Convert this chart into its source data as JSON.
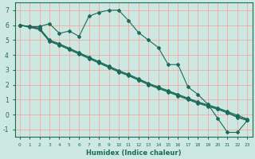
{
  "xlabel": "Humidex (Indice chaleur)",
  "bg_color": "#cce8e0",
  "grid_color": "#ff9999",
  "line_color": "#1a6b5a",
  "xlim": [
    -0.5,
    23.5
  ],
  "ylim": [
    -1.5,
    7.5
  ],
  "xticks": [
    0,
    1,
    2,
    3,
    4,
    5,
    6,
    7,
    8,
    9,
    10,
    11,
    12,
    13,
    14,
    15,
    16,
    17,
    18,
    19,
    20,
    21,
    22,
    23
  ],
  "yticks": [
    -1,
    0,
    1,
    2,
    3,
    4,
    5,
    6,
    7
  ],
  "line1_x": [
    0,
    1,
    2,
    3,
    4,
    5,
    6,
    7,
    8,
    9,
    10,
    11,
    12,
    13,
    14,
    15,
    16,
    17,
    18,
    19,
    20,
    21,
    22,
    23
  ],
  "line1_y": [
    6.0,
    5.9,
    5.9,
    6.1,
    5.45,
    5.6,
    5.25,
    6.6,
    6.85,
    7.0,
    7.0,
    6.3,
    5.5,
    5.0,
    4.5,
    3.35,
    3.35,
    1.85,
    1.35,
    0.7,
    -0.25,
    -1.2,
    -1.2,
    -0.4
  ],
  "line2_x": [
    0,
    1,
    2,
    3,
    4,
    5,
    6,
    7,
    8,
    9,
    10,
    11,
    12,
    13,
    14,
    15,
    16,
    17,
    18,
    19,
    20,
    21,
    22,
    23
  ],
  "line2_y": [
    6.0,
    5.9,
    5.8,
    5.0,
    4.75,
    4.45,
    4.15,
    3.85,
    3.55,
    3.25,
    2.95,
    2.7,
    2.4,
    2.1,
    1.85,
    1.6,
    1.35,
    1.1,
    0.85,
    0.65,
    0.45,
    0.2,
    -0.05,
    -0.3
  ],
  "line3_x": [
    0,
    1,
    2,
    3,
    4,
    5,
    6,
    7,
    8,
    9,
    10,
    11,
    12,
    13,
    14,
    15,
    16,
    17,
    18,
    19,
    20,
    21,
    22,
    23
  ],
  "line3_y": [
    6.0,
    5.9,
    5.75,
    4.95,
    4.7,
    4.4,
    4.1,
    3.8,
    3.5,
    3.2,
    2.9,
    2.65,
    2.35,
    2.05,
    1.8,
    1.55,
    1.3,
    1.05,
    0.8,
    0.6,
    0.4,
    0.15,
    -0.15,
    -0.35
  ],
  "line4_x": [
    0,
    1,
    2,
    3,
    4,
    5,
    6,
    7,
    8,
    9,
    10,
    11,
    12,
    13,
    14,
    15,
    16,
    17,
    18,
    19,
    20,
    21,
    22,
    23
  ],
  "line4_y": [
    6.0,
    5.85,
    5.7,
    4.9,
    4.65,
    4.35,
    4.05,
    3.75,
    3.45,
    3.15,
    2.85,
    2.6,
    2.3,
    2.0,
    1.75,
    1.5,
    1.25,
    1.0,
    0.75,
    0.55,
    0.35,
    0.1,
    -0.2,
    -0.4
  ]
}
